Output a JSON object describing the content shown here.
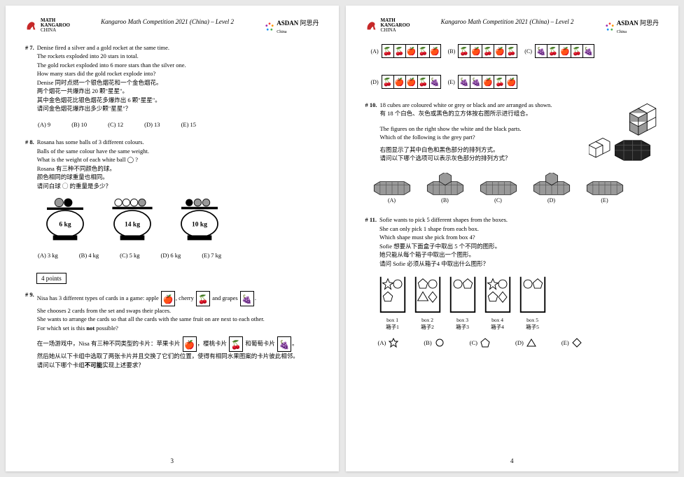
{
  "header": {
    "title": "Kangaroo Math Competition 2021 (China) – Level 2",
    "logo_left_l1": "MATH",
    "logo_left_l2": "KANGAROO",
    "logo_left_l3": "CHINA",
    "logo_right_brand": "ASDAN",
    "logo_right_cn": "阿思丹",
    "logo_right_sub": "China"
  },
  "colors": {
    "kangaroo_red": "#c62828",
    "asdan_accent": "#8bc34a",
    "page_bg": "#ffffff",
    "body_bg": "#e8e8e8"
  },
  "p3": {
    "q7": {
      "num": "# 7.",
      "en1": "Denise fired a silver and a gold rocket at the same time.",
      "en2": "The rockets exploded into 20 stars in total.",
      "en3": "The gold rocket exploded into 6 more stars than the silver one.",
      "en4": "How many stars did the gold rocket explode into?",
      "cn1": "Denise 同时点燃一个银色烟花和一个金色烟花。",
      "cn2": "两个烟花一共爆炸出 20 颗\"星星\"。",
      "cn3": "其中金色烟花比银色烟花多爆炸出 6 颗\"星星\"。",
      "cn4": "请问金色烟花爆炸出多少颗\"星星\"？",
      "opts": {
        "A": "(A) 9",
        "B": "(B) 10",
        "C": "(C) 12",
        "D": "(D) 13",
        "E": "(E) 15"
      }
    },
    "q8": {
      "num": "# 8.",
      "en1": "Rosana has some balls of 3 different colours.",
      "en2": "Balls of the same colour have the same weight.",
      "en3": "What is the weight of each white ball ◯ ?",
      "cn1": "Rosana 有三种不同颜色的球。",
      "cn2": "颜色相同的球重量也相同。",
      "cn3": "请问白球 ◯ 的重量是多少？",
      "scales": [
        {
          "balls": [
            "grey",
            "black"
          ],
          "wt": "6 kg"
        },
        {
          "balls": [
            "white",
            "white",
            "white",
            "grey"
          ],
          "wt": "14 kg"
        },
        {
          "balls": [
            "black",
            "grey",
            "grey"
          ],
          "wt": "10 kg"
        }
      ],
      "opts": {
        "A": "(A) 3 kg",
        "B": "(B) 4 kg",
        "C": "(C) 5 kg",
        "D": "(D) 6 kg",
        "E": "(E) 7 kg"
      }
    },
    "points_box": "4 points",
    "q9": {
      "num": "# 9.",
      "en1_a": "Nisa has 3 different types of cards in a game: apple",
      "en1_b": ", cherry",
      "en1_c": "and grapes",
      "en1_d": ".",
      "apple": "🍎",
      "cherry": "🍒",
      "grape": "🍇",
      "en2": "She chooses 2 cards from the set and swaps their places.",
      "en3": "She wants to arrange the cards so that all the cards with the same fruit on are next to each other.",
      "en4": "For which set is this not possible?",
      "cn1_a": "在一场游戏中，Nisa 有三种不同类型的卡片：苹果卡片",
      "cn1_b": "，樱桃卡片",
      "cn1_c": "和葡萄卡片",
      "cn1_d": "。",
      "cn2": "然后她从以下卡组中选取了两张卡片并且交换了它们的位置，使得有相同水果图案的卡片彼此相邻。",
      "cn3": "请问以下哪个卡组不可能实现上述要求？"
    },
    "pagenum": "3"
  },
  "p4": {
    "q9opts": {
      "sets": [
        {
          "lbl": "(A)",
          "seq": [
            "🍒",
            "🍒",
            "🍎",
            "🍒",
            "🍎"
          ]
        },
        {
          "lbl": "(B)",
          "seq": [
            "🍒",
            "🍎",
            "🍒",
            "🍎",
            "🍒"
          ]
        },
        {
          "lbl": "(C)",
          "seq": [
            "🍇",
            "🍒",
            "🍎",
            "🍒",
            "🍇"
          ]
        },
        {
          "lbl": "(D)",
          "seq": [
            "🍒",
            "🍎",
            "🍎",
            "🍒",
            "🍇"
          ]
        },
        {
          "lbl": "(E)",
          "seq": [
            "🍇",
            "🍇",
            "🍎",
            "🍒",
            "🍎"
          ]
        }
      ]
    },
    "q10": {
      "num": "# 10.",
      "en1": "18 cubes are coloured white or grey or black and are arranged as shown.",
      "cn1": "有 18 个白色、灰色或黑色的立方体按右图所示进行组合。",
      "en2": "The figures on the right show the white and the black parts.",
      "en3": "Which of the following is the grey part?",
      "cn2": "右图显示了其中白色和黑色部分的排列方式。",
      "cn3": "请问以下哪个选项可以表示灰色部分的排列方式？",
      "opts": [
        "(A)",
        "(B)",
        "(C)",
        "(D)",
        "(E)"
      ]
    },
    "q11": {
      "num": "# 11.",
      "en1": "Sofie wants to pick 5 different shapes from the boxes.",
      "en2": "She can only pick 1 shape from each box.",
      "en3": "Which shape must she pick from box 4?",
      "cn1": "Sofie 想要从下面盒子中取出 5 个不同的图形。",
      "cn2": "她只能从每个箱子中取出一个图形。",
      "cn3": "请问 Sofie 必须从箱子4 中取出什么图形？",
      "boxes": [
        {
          "en": "box 1",
          "cn": "箱子1"
        },
        {
          "en": "box 2",
          "cn": "箱子2"
        },
        {
          "en": "box 3",
          "cn": "箱子3"
        },
        {
          "en": "box 4",
          "cn": "箱子4"
        },
        {
          "en": "box 5",
          "cn": "箱子5"
        }
      ],
      "opts": {
        "A": "(A)",
        "B": "(B)",
        "C": "(C)",
        "D": "(D)",
        "E": "(E)"
      }
    },
    "pagenum": "4"
  }
}
